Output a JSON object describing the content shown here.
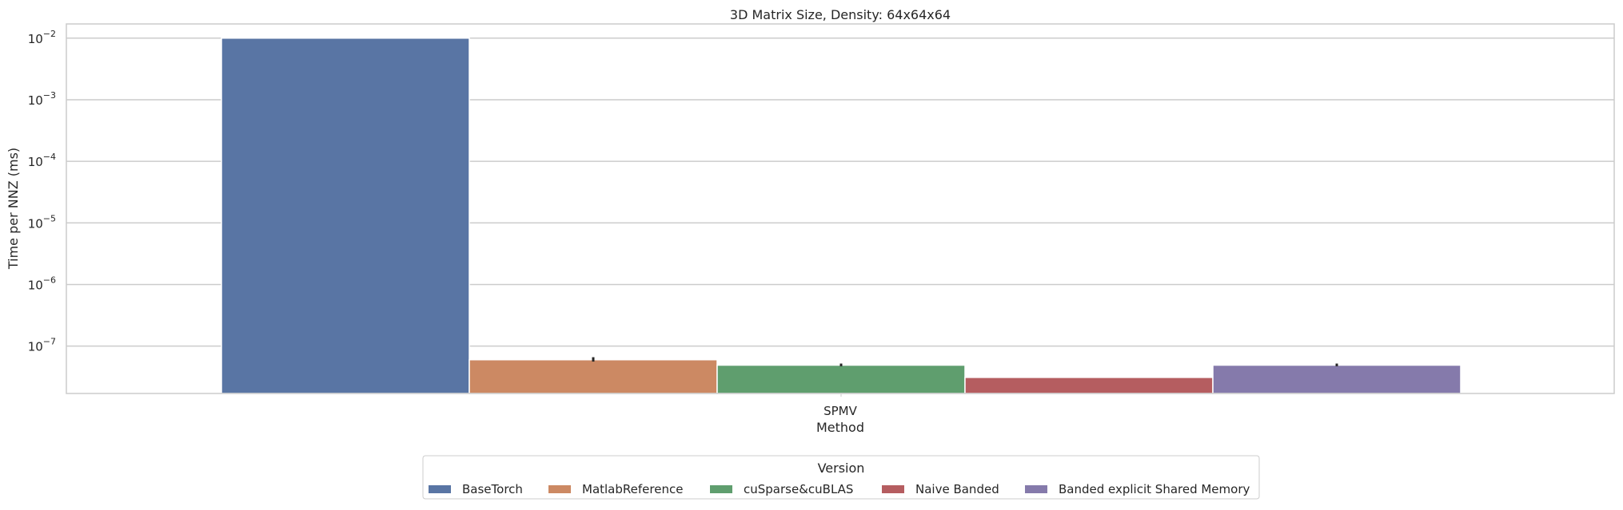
{
  "chart_data": {
    "type": "bar",
    "title": "3D Matrix Size, Density: 64x64x64",
    "xlabel": "Method",
    "ylabel": "Time per NNZ (ms)",
    "yscale": "log",
    "ylim": [
      1.7e-08,
      0.017
    ],
    "y_ticks": [
      {
        "exp": "−2",
        "value": 0.01
      },
      {
        "exp": "−3",
        "value": 0.001
      },
      {
        "exp": "−4",
        "value": 0.0001
      },
      {
        "exp": "−5",
        "value": 1e-05
      },
      {
        "exp": "−6",
        "value": 1e-06
      },
      {
        "exp": "−7",
        "value": 1e-07
      }
    ],
    "categories": [
      "SPMV"
    ],
    "grid": true,
    "legend": {
      "title": "Version",
      "placement": "bottom-center"
    },
    "series": [
      {
        "name": "BaseTorch",
        "color": "#5975a4",
        "values": [
          0.01
        ],
        "error": [
          0.01,
          0.01
        ]
      },
      {
        "name": "MatlabReference",
        "color": "#cc8963",
        "values": [
          6e-08
        ],
        "error": [
          5.6e-08,
          6.6e-08
        ]
      },
      {
        "name": "cuSparse&cuBLAS",
        "color": "#5f9e6e",
        "values": [
          4.9e-08
        ],
        "error": [
          4.7e-08,
          5.2e-08
        ]
      },
      {
        "name": "Naive Banded",
        "color": "#b55d60",
        "values": [
          3.1e-08
        ],
        "error": [
          3.1e-08,
          3.1e-08
        ]
      },
      {
        "name": "Banded explicit Shared Memory",
        "color": "#857aab",
        "values": [
          4.9e-08
        ],
        "error": [
          4.7e-08,
          5.2e-08
        ]
      }
    ]
  }
}
